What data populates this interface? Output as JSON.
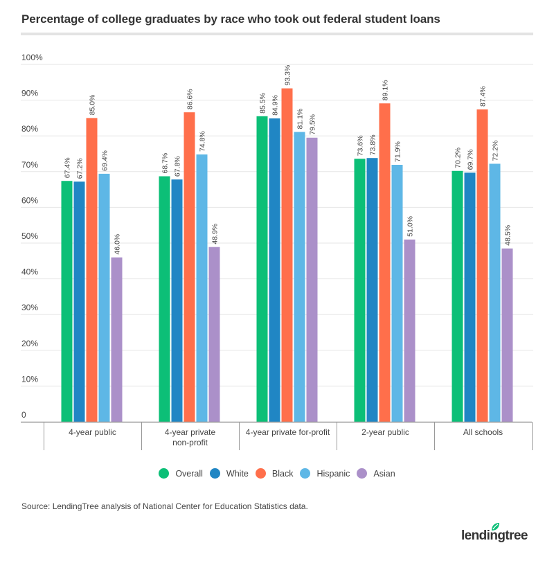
{
  "chart_data": {
    "type": "bar",
    "title": "Percentage of college graduates by race who took out federal student loans",
    "xlabel": "",
    "ylabel": "",
    "ylim": [
      0,
      100
    ],
    "grid": true,
    "legend_position": "bottom-center",
    "yticks": [
      "0",
      "10%",
      "20%",
      "30%",
      "40%",
      "50%",
      "60%",
      "70%",
      "80%",
      "90%",
      "100%"
    ],
    "categories": [
      [
        "4-year public"
      ],
      [
        "4-year private",
        "non-profit"
      ],
      [
        "4-year private for-profit"
      ],
      [
        "2-year public"
      ],
      [
        "All schools"
      ]
    ],
    "series": [
      {
        "name": "Overall",
        "color": "#0cbf77",
        "values": [
          67.4,
          68.7,
          85.5,
          73.6,
          70.2
        ],
        "labels": [
          "67.4%",
          "68.7%",
          "85.5%",
          "73.6%",
          "70.2%"
        ]
      },
      {
        "name": "White",
        "color": "#2086c4",
        "values": [
          67.2,
          67.8,
          84.9,
          73.8,
          69.7
        ],
        "labels": [
          "67.2%",
          "67.8%",
          "84.9%",
          "73.8%",
          "69.7%"
        ]
      },
      {
        "name": "Black",
        "color": "#ff6f4b",
        "values": [
          85.0,
          86.6,
          93.3,
          89.1,
          87.4
        ],
        "labels": [
          "85.0%",
          "86.6%",
          "93.3%",
          "89.1%",
          "87.4%"
        ]
      },
      {
        "name": "Hispanic",
        "color": "#5eb7e6",
        "values": [
          69.4,
          74.8,
          81.1,
          71.9,
          72.2
        ],
        "labels": [
          "69.4%",
          "74.8%",
          "81.1%",
          "71.9%",
          "72.2%"
        ]
      },
      {
        "name": "Asian",
        "color": "#ab90c9",
        "values": [
          46.0,
          48.9,
          79.5,
          51.0,
          48.5
        ],
        "labels": [
          "46.0%",
          "48.9%",
          "79.5%",
          "51.0%",
          "48.5%"
        ]
      }
    ]
  },
  "footer": {
    "source": "Source: LendingTree analysis of National Center for Education Statistics data.",
    "logo_text": "lendingtree",
    "logo_color": "#0cbf77"
  }
}
